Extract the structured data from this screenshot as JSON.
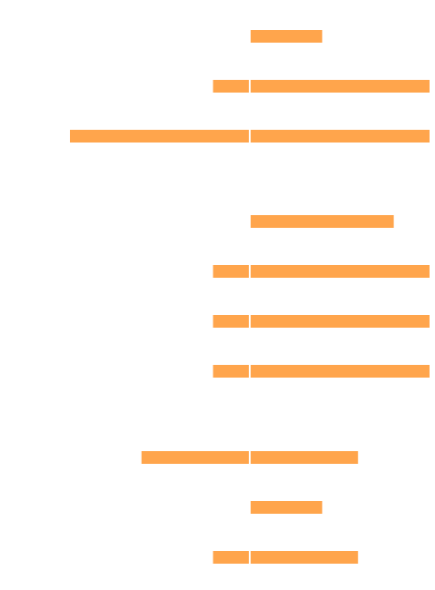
{
  "chart_data": {
    "type": "bar",
    "orientation": "horizontal",
    "stacked": true,
    "segment_unit": 1,
    "x_axis": {
      "visible": false,
      "ticks": []
    },
    "y_axis": {
      "visible": false,
      "ticks": []
    },
    "grid": false,
    "legend": null,
    "colors": {
      "bar": "#FFA54C",
      "background": "#FFFFFF"
    },
    "rows": [
      {
        "left": 0,
        "right": 2
      },
      {
        "left": 1,
        "right": 5
      },
      {
        "left": 5,
        "right": 5
      },
      {
        "left": 0,
        "right": 4
      },
      {
        "left": 1,
        "right": 5
      },
      {
        "left": 1,
        "right": 5
      },
      {
        "left": 1,
        "right": 5
      },
      {
        "left": 3,
        "right": 3
      },
      {
        "left": 0,
        "right": 2
      },
      {
        "left": 1,
        "right": 3
      }
    ]
  }
}
